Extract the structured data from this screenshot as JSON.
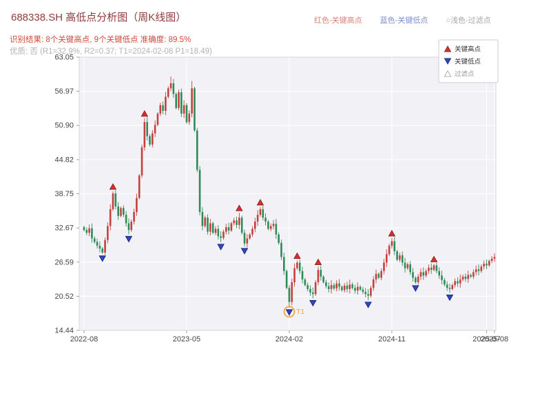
{
  "header": {
    "title": "688338.SH 高低点分析图（周K线图）",
    "title_color": "#8e3b3b",
    "inline_legend": [
      {
        "label": "红色-关键高点",
        "color": "#d9837a"
      },
      {
        "label": "蓝色-关键低点",
        "color": "#7d8fd0"
      },
      {
        "label": "○浅色-过滤点",
        "color": "#a6a6a6"
      }
    ],
    "result_line": "识别结果: 8个关键高点, 9个关键低点  准确度: 89.5%",
    "result_color": "#d04a3a",
    "quality_line": "优质: 否 (R1=32.9%, R2=0.37; T1=2024-02-08 P1=18.49)",
    "quality_color": "#b3b3b3"
  },
  "chart_data": {
    "type": "candlestick",
    "symbol": "688338.SH",
    "timeframe": "weekly",
    "ylim": [
      14.44,
      63.05
    ],
    "y_ticks": [
      63.05,
      56.97,
      50.9,
      44.82,
      38.75,
      32.67,
      26.59,
      20.52,
      14.44
    ],
    "x_ticks": [
      {
        "week": 0,
        "label": "2022-08"
      },
      {
        "week": 39,
        "label": "2023-05"
      },
      {
        "week": 78,
        "label": "2024-02"
      },
      {
        "week": 117,
        "label": "2024-11"
      },
      {
        "week": 153,
        "label": "2025-07"
      },
      {
        "week": 156,
        "label": "2025-08"
      }
    ],
    "up_color": "#c5403d",
    "down_color": "#2e8b57",
    "closes": [
      32.3,
      31.8,
      32.6,
      30.8,
      30.2,
      29.5,
      29.0,
      28.3,
      30.5,
      33.0,
      36.0,
      38.8,
      36.5,
      34.8,
      36.2,
      35.0,
      33.5,
      32.3,
      33.8,
      35.5,
      38.0,
      42.0,
      47.0,
      51.5,
      49.0,
      47.5,
      49.5,
      51.0,
      53.0,
      54.5,
      53.5,
      56.0,
      57.5,
      58.4,
      56.5,
      54.0,
      56.8,
      53.0,
      54.5,
      51.5,
      53.0,
      57.5,
      50.0,
      43.0,
      35.5,
      33.0,
      34.5,
      32.0,
      33.5,
      31.8,
      32.5,
      31.2,
      30.9,
      32.0,
      32.8,
      32.2,
      33.5,
      34.0,
      33.2,
      34.5,
      31.8,
      29.9,
      30.8,
      31.5,
      32.5,
      33.8,
      35.0,
      36.0,
      34.5,
      33.8,
      32.5,
      33.0,
      33.4,
      31.5,
      30.0,
      27.5,
      25.0,
      22.0,
      19.5,
      23.0,
      25.5,
      26.5,
      25.0,
      23.5,
      22.5,
      21.8,
      21.2,
      20.9,
      23.0,
      25.2,
      24.0,
      23.0,
      22.3,
      21.8,
      22.5,
      21.9,
      22.8,
      22.2,
      21.6,
      22.4,
      21.8,
      22.6,
      22.0,
      21.5,
      22.2,
      21.7,
      21.3,
      20.9,
      20.6,
      22.0,
      23.5,
      24.5,
      23.8,
      25.0,
      26.5,
      28.0,
      29.5,
      30.3,
      28.5,
      27.0,
      27.8,
      26.5,
      25.5,
      26.2,
      24.8,
      23.8,
      23.0,
      24.0,
      24.8,
      24.2,
      25.0,
      25.6,
      25.2,
      26.0,
      25.0,
      24.2,
      23.4,
      22.6,
      22.0,
      21.8,
      22.5,
      23.2,
      22.8,
      23.5,
      24.0,
      23.6,
      24.3,
      24.0,
      24.8,
      25.3,
      25.0,
      25.8,
      26.3,
      26.0,
      26.8,
      27.2,
      27.5
    ],
    "wick_overrides": {
      "33": {
        "high": 59.6
      },
      "41": {
        "high": 58.8
      },
      "78": {
        "low": 18.49
      }
    },
    "key_high_weeks": [
      11,
      23,
      59,
      67,
      81,
      89,
      117,
      133
    ],
    "key_low_weeks": [
      7,
      17,
      52,
      61,
      78,
      87,
      108,
      126,
      139
    ],
    "high_marker": {
      "label": "关键高点",
      "color": "#d32f2f",
      "edge": "#8b1a1a"
    },
    "low_marker": {
      "label": "关键低点",
      "color": "#2f45c5",
      "edge": "#16246e"
    },
    "filtered_marker": {
      "label": "过滤点",
      "color": "#ffffff",
      "edge": "#999999"
    },
    "t1": {
      "week": 78,
      "value": 18.49,
      "label": "T1",
      "color": "#f2a33c"
    }
  }
}
